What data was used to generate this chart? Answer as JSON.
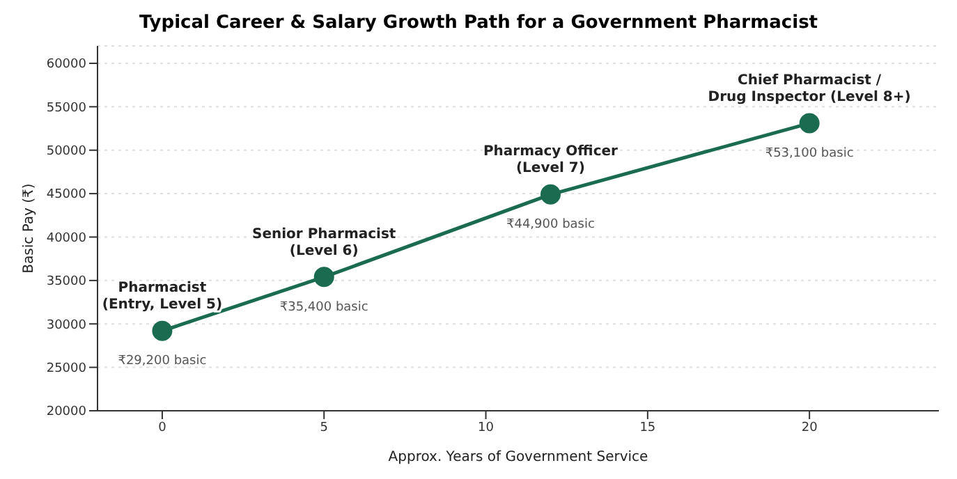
{
  "chart_data": {
    "type": "line",
    "title": "Typical Career & Salary Growth Path for a Government Pharmacist",
    "xlabel": "Approx. Years of Government Service",
    "ylabel": "Basic Pay (₹)",
    "x": [
      0,
      5,
      12,
      20
    ],
    "series": [
      {
        "color": "#1a6b50",
        "values": [
          29200,
          35400,
          44900,
          53100
        ],
        "value_labels": [
          "₹29,200 basic",
          "₹35,400 basic",
          "₹44,900 basic",
          "₹53,100 basic"
        ]
      }
    ],
    "xlim": [
      -2,
      24
    ],
    "xticks": [
      0,
      5,
      10,
      15,
      20
    ],
    "ylim": [
      20000,
      62000
    ],
    "yticks": [
      20000,
      25000,
      30000,
      35000,
      40000,
      45000,
      50000,
      55000,
      60000
    ],
    "grid": "y",
    "marker": "circle",
    "line_style": "solid",
    "annotations": [
      {
        "text": "Pharmacist\n(Entry, Level 5)",
        "x": 0,
        "y": 29200
      },
      {
        "text": "Senior Pharmacist\n(Level 6)",
        "x": 5,
        "y": 35400
      },
      {
        "text": "Pharmacy Officer\n(Level 7)",
        "x": 12,
        "y": 44900
      },
      {
        "text": "Chief Pharmacist /\nDrug Inspector (Level 8+)",
        "x": 20,
        "y": 53100
      }
    ]
  }
}
